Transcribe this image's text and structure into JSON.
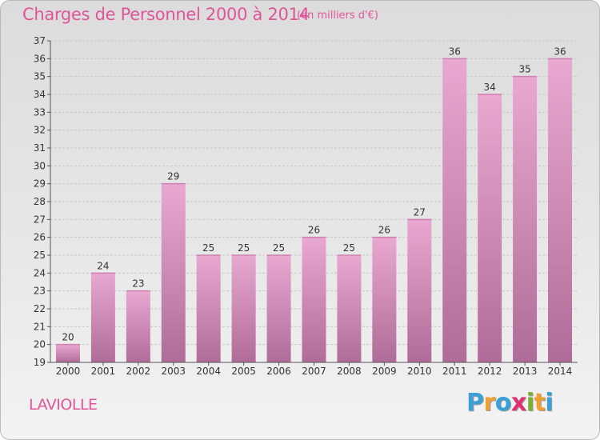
{
  "header": {
    "title": "Charges de Personnel 2000 à 2014",
    "subtitle": "(en milliers d'€)"
  },
  "footer": {
    "commune": "LAVIOLLE",
    "logo": {
      "letters": [
        "P",
        "r",
        "o",
        "x",
        "i",
        "t",
        "i"
      ],
      "colors": [
        "#3aa0d8",
        "#f0a030",
        "#3aa0d8",
        "#e03070",
        "#7ab030",
        "#f0a030",
        "#3aa0d8"
      ]
    }
  },
  "colors": {
    "bar_top": "#e8a8d0",
    "bar_bottom": "#b06c98",
    "text_accent": "#e0559a",
    "grid": "#c8c8c8"
  },
  "chart_data": {
    "type": "bar",
    "title": "Charges de Personnel 2000 à 2014",
    "subtitle": "(en milliers d'€)",
    "xlabel": "",
    "ylabel": "",
    "categories": [
      "2000",
      "2001",
      "2002",
      "2003",
      "2004",
      "2005",
      "2006",
      "2007",
      "2008",
      "2009",
      "2010",
      "2011",
      "2012",
      "2013",
      "2014"
    ],
    "values": [
      20,
      24,
      23,
      29,
      25,
      25,
      25,
      26,
      25,
      26,
      27,
      36,
      34,
      35,
      36
    ],
    "ylim": [
      19,
      37
    ],
    "yticks": [
      "19",
      "20",
      "21",
      "22",
      "23",
      "24",
      "25",
      "26",
      "27",
      "28",
      "29",
      "30",
      "31",
      "32",
      "33",
      "34",
      "35",
      "36",
      "37"
    ],
    "grid": true,
    "legend": "none"
  }
}
